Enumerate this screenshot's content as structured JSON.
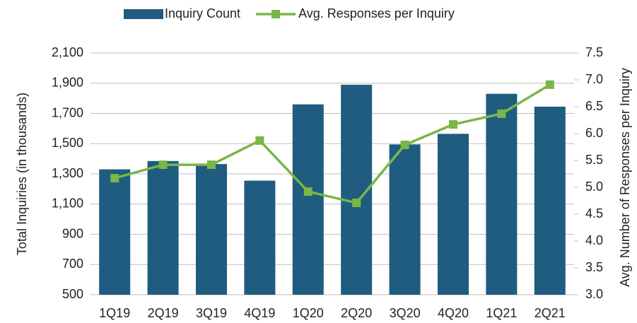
{
  "chart_data": {
    "type": "bar",
    "categories": [
      "1Q19",
      "2Q19",
      "3Q19",
      "4Q19",
      "1Q20",
      "2Q20",
      "3Q20",
      "4Q20",
      "1Q21",
      "2Q21"
    ],
    "series": [
      {
        "name": "Inquiry Count",
        "color": "#1f5c80",
        "type": "bar",
        "values": [
          1330,
          1385,
          1365,
          1255,
          1760,
          1890,
          1495,
          1565,
          1830,
          1745
        ]
      },
      {
        "name": "Avg. Responses per Inquiry",
        "color": "#7ab648",
        "type": "line",
        "axis": "y2",
        "values": [
          5.17,
          5.42,
          5.42,
          5.87,
          4.92,
          4.71,
          5.79,
          6.17,
          6.37,
          6.91
        ]
      }
    ],
    "y_label": "Total Inquiries (in thousands)",
    "y2_label": "Avg. Number of Responses per Inquiry",
    "ylim": [
      500,
      2100
    ],
    "yticks": [
      500,
      700,
      900,
      {
        "value": 1100,
        "label": "1,100"
      },
      {
        "value": 1300,
        "label": "1,300"
      },
      {
        "value": 1500,
        "label": "1,500"
      },
      {
        "value": 1700,
        "label": "1,700"
      },
      {
        "value": 1900,
        "label": "1,900"
      },
      {
        "value": 2100,
        "label": "2,100"
      }
    ],
    "y2lim": [
      3.0,
      7.5
    ],
    "y2ticks": [
      {
        "value": 3.0,
        "label": "3.0"
      },
      3.5,
      {
        "value": 4.0,
        "label": "4.0"
      },
      4.5,
      {
        "value": 5.0,
        "label": "5.0"
      },
      5.5,
      {
        "value": 6.0,
        "label": "6.0"
      },
      6.5,
      {
        "value": 7.0,
        "label": "7.0"
      },
      7.5
    ],
    "grid": true,
    "legend": "top"
  }
}
